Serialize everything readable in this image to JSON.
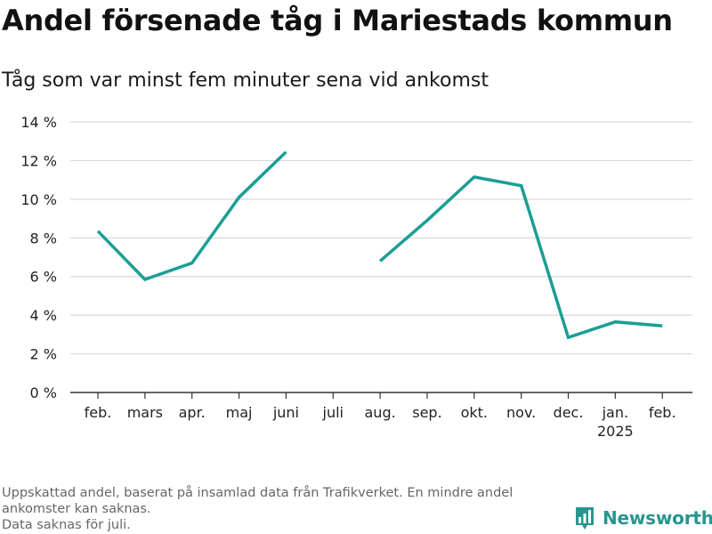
{
  "title": "Andel försenade tåg i Mariestads kommun",
  "subtitle": "Tåg som var minst fem minuter sena vid ankomst",
  "footnote": [
    "Uppskattad andel, baserat på insamlad data från Trafikverket. En mindre andel",
    "ankomster kan saknas.",
    "Data saknas för juli."
  ],
  "brand": {
    "name": "Newsworthy",
    "icon": "bar-chart-logo-icon"
  },
  "colors": {
    "line": "#1a9e96",
    "grid": "#d9d9d9",
    "axis": "#333333",
    "brand": "#27968f"
  },
  "chart_data": {
    "type": "line",
    "categories": [
      "feb.",
      "mars",
      "apr.",
      "maj",
      "juni",
      "juli",
      "aug.",
      "sep.",
      "okt.",
      "nov.",
      "dec.",
      "jan.",
      "feb."
    ],
    "year_label": "2025",
    "year_label_under": "jan.",
    "series": [
      {
        "values": [
          8.35,
          5.85,
          6.7,
          10.1,
          12.45,
          null,
          6.8,
          8.9,
          11.15,
          10.7,
          2.85,
          3.65,
          3.45
        ]
      }
    ],
    "ylim": [
      0,
      14
    ],
    "yticks": [
      0,
      2,
      4,
      6,
      8,
      10,
      12,
      14
    ],
    "ytick_labels": [
      "0 %",
      "2 %",
      "4 %",
      "6 %",
      "8 %",
      "10 %",
      "12 %",
      "14 %"
    ],
    "grid": true,
    "legend": "none"
  }
}
